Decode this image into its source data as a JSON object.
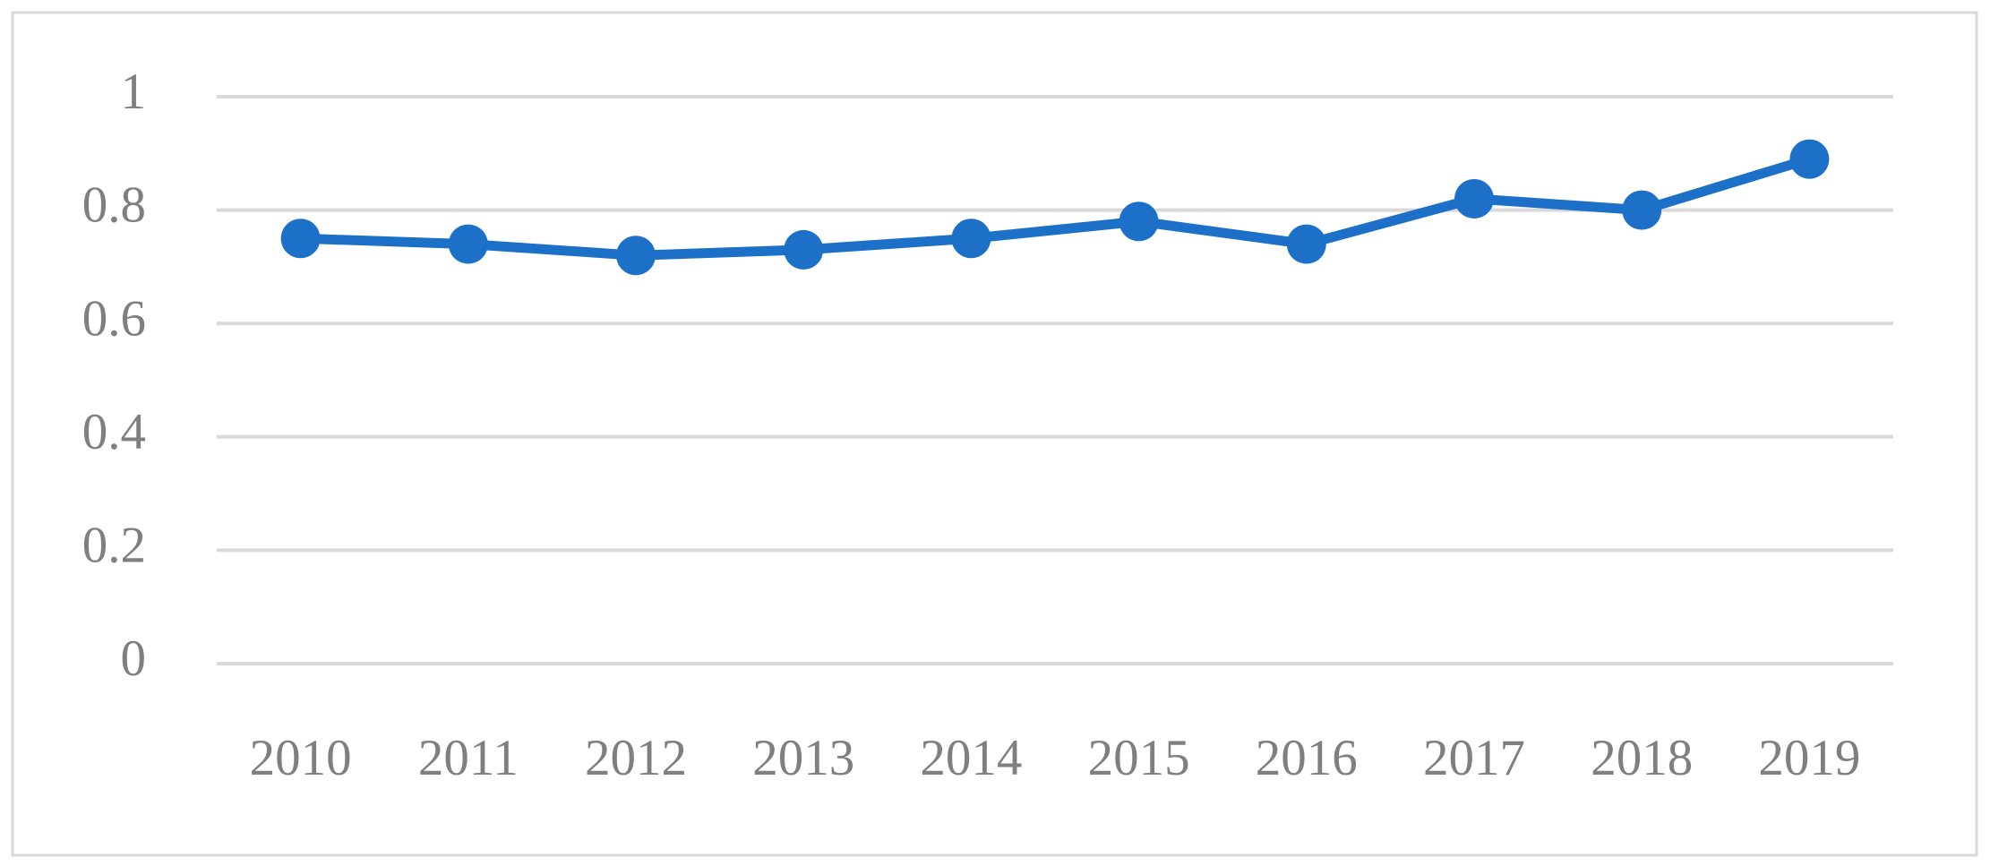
{
  "chart_data": {
    "type": "line",
    "categories": [
      "2010",
      "2011",
      "2012",
      "2013",
      "2014",
      "2015",
      "2016",
      "2017",
      "2018",
      "2019"
    ],
    "series": [
      {
        "color": "#1c70c8",
        "values": [
          0.75,
          0.74,
          0.72,
          0.73,
          0.75,
          0.78,
          0.74,
          0.82,
          0.8,
          0.89
        ]
      }
    ],
    "ylim": [
      0,
      1
    ],
    "yticks": [
      0,
      0.2,
      0.4,
      0.6,
      0.8,
      1
    ],
    "grid": true
  }
}
